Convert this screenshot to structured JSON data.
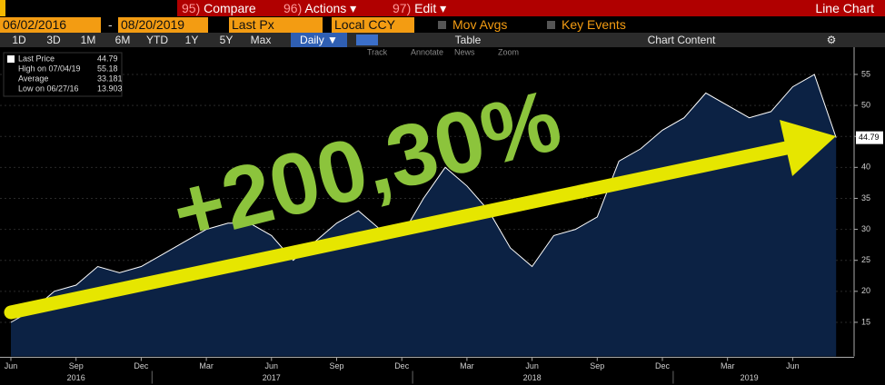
{
  "toolbar": {
    "menu": [
      {
        "num": "95)",
        "label": "Compare"
      },
      {
        "num": "96)",
        "label": "Actions ▾"
      },
      {
        "num": "97)",
        "label": "Edit ▾"
      }
    ],
    "view_title": "Line Chart",
    "start_date": "06/02/2016",
    "date_sep": "-",
    "end_date": "08/20/2019",
    "field": "Last Px",
    "currency": "Local CCY",
    "mov_avgs": "Mov Avgs",
    "key_events": "Key Events",
    "ranges": [
      "1D",
      "3D",
      "1M",
      "6M",
      "YTD",
      "1Y",
      "5Y",
      "Max"
    ],
    "frequency": "Daily ▼",
    "table": "Table",
    "chart_content": "Chart Content",
    "tools": [
      "Track",
      "Annotate",
      "News",
      "Zoom"
    ]
  },
  "chart_data": {
    "type": "line",
    "annotation": "+200,30%",
    "legend": [
      {
        "label": "Last Price",
        "value": 44.79
      },
      {
        "label": "High on 07/04/19",
        "value": 55.18
      },
      {
        "label": "Average",
        "value": 33.181
      },
      {
        "label": "Low on 06/27/16",
        "value": 13.903
      }
    ],
    "x": [
      "2016-06",
      "2016-07",
      "2016-08",
      "2016-09",
      "2016-10",
      "2016-11",
      "2016-12",
      "2017-01",
      "2017-02",
      "2017-03",
      "2017-04",
      "2017-05",
      "2017-06",
      "2017-07",
      "2017-08",
      "2017-09",
      "2017-10",
      "2017-11",
      "2017-12",
      "2018-01",
      "2018-02",
      "2018-03",
      "2018-04",
      "2018-05",
      "2018-06",
      "2018-07",
      "2018-08",
      "2018-09",
      "2018-10",
      "2018-11",
      "2018-12",
      "2019-01",
      "2019-02",
      "2019-03",
      "2019-04",
      "2019-05",
      "2019-06",
      "2019-07",
      "2019-08"
    ],
    "series": [
      {
        "name": "Last Price",
        "color": "#ffffff",
        "values": [
          15,
          17,
          20,
          21,
          24,
          23,
          24,
          26,
          28,
          30,
          31,
          31,
          29,
          25,
          28,
          31,
          33,
          30,
          29,
          35,
          40,
          37,
          33,
          27,
          24,
          29,
          30,
          32,
          41,
          43,
          46,
          48,
          52,
          50,
          48,
          49,
          53,
          55,
          44.79
        ]
      }
    ],
    "ylim": [
      9.5,
      61
    ],
    "yticks": [
      15,
      20,
      25,
      30,
      35,
      40,
      45,
      50,
      55
    ],
    "xticks": [
      {
        "value": "2016-06",
        "label": "Jun"
      },
      {
        "value": "2016-09",
        "label": "Sep"
      },
      {
        "value": "2016-12",
        "label": "Dec"
      },
      {
        "value": "2017-03",
        "label": "Mar"
      },
      {
        "value": "2017-06",
        "label": "Jun"
      },
      {
        "value": "2017-09",
        "label": "Sep"
      },
      {
        "value": "2017-12",
        "label": "Dec"
      },
      {
        "value": "2018-03",
        "label": "Mar"
      },
      {
        "value": "2018-06",
        "label": "Jun"
      },
      {
        "value": "2018-09",
        "label": "Sep"
      },
      {
        "value": "2018-12",
        "label": "Dec"
      },
      {
        "value": "2019-03",
        "label": "Mar"
      },
      {
        "value": "2019-06",
        "label": "Jun"
      }
    ],
    "year_ticks": [
      {
        "value": "2016-09",
        "label": "2016"
      },
      {
        "value": "2017-06",
        "label": "2017"
      },
      {
        "value": "2018-06",
        "label": "2018"
      },
      {
        "value": "2019-04",
        "label": "2019"
      }
    ],
    "fill_color": "#0c2244"
  }
}
